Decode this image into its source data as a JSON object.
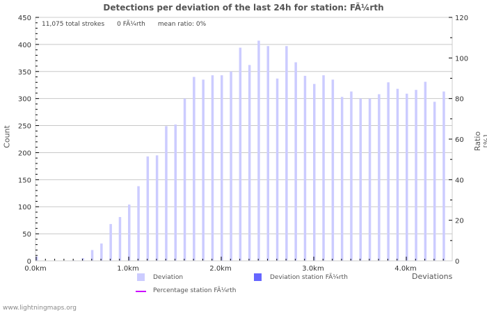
{
  "title": "Detections per deviation of the last 24h for station: FÃ¼rth",
  "stats": {
    "total_strokes": "11,075 total strokes",
    "station_count": "0 FÃ¼rth",
    "mean_ratio": "mean ratio: 0%"
  },
  "footer": "www.lightningmaps.org",
  "colors": {
    "deviation": "#ccccff",
    "deviation_station": "#6666ff",
    "percentage_line": "#cc00ff",
    "grid": "#c8c8c8"
  },
  "chart_data": {
    "type": "bar",
    "title": "Detections per deviation of the last 24h for station: FÃ¼rth",
    "xlabel": "Deviations",
    "ylabel": "Count",
    "ylabel_right": "Ratio [%]",
    "ylim": [
      0,
      450
    ],
    "ylim_right": [
      0,
      120
    ],
    "yticks": [
      0,
      50,
      100,
      150,
      200,
      250,
      300,
      350,
      400,
      450
    ],
    "yticks_right": [
      0,
      20,
      40,
      60,
      80,
      100,
      120
    ],
    "xtick_labels": [
      "0.0km",
      "1.0km",
      "2.0km",
      "3.0km",
      "4.0km"
    ],
    "grid": true,
    "legend": [
      "Deviation",
      "Deviation station FÃ¼rth",
      "Percentage station FÃ¼rth"
    ],
    "legend_position": "bottom",
    "categories": [
      "0.0",
      "0.1",
      "0.2",
      "0.3",
      "0.4",
      "0.5",
      "0.6",
      "0.7",
      "0.8",
      "0.9",
      "1.0",
      "1.1",
      "1.2",
      "1.3",
      "1.4",
      "1.5",
      "1.6",
      "1.7",
      "1.8",
      "1.9",
      "2.0",
      "2.1",
      "2.2",
      "2.3",
      "2.4",
      "2.5",
      "2.6",
      "2.7",
      "2.8",
      "2.9",
      "3.0",
      "3.1",
      "3.2",
      "3.3",
      "3.4",
      "3.5",
      "3.6",
      "3.7",
      "3.8",
      "3.9",
      "4.0",
      "4.1",
      "4.2",
      "4.3",
      "4.4"
    ],
    "series": [
      {
        "name": "Deviation",
        "values": [
          8,
          0,
          0,
          0,
          1,
          5,
          20,
          32,
          68,
          81,
          104,
          138,
          193,
          195,
          249,
          252,
          300,
          340,
          335,
          343,
          343,
          350,
          394,
          362,
          407,
          397,
          337,
          397,
          367,
          342,
          327,
          343,
          335,
          303,
          313,
          300,
          300,
          308,
          330,
          318,
          309,
          316,
          331,
          294,
          313
        ]
      },
      {
        "name": "Deviation station FÃ¼rth",
        "values": [
          0,
          0,
          0,
          0,
          0,
          0,
          0,
          0,
          0,
          0,
          0,
          0,
          0,
          0,
          0,
          0,
          0,
          0,
          0,
          0,
          0,
          0,
          0,
          0,
          0,
          0,
          0,
          0,
          0,
          0,
          0,
          0,
          0,
          0,
          0,
          0,
          0,
          0,
          0,
          0,
          0,
          0,
          0,
          0,
          0
        ]
      },
      {
        "name": "Percentage station FÃ¼rth",
        "values": [
          0,
          0,
          0,
          0,
          0,
          0,
          0,
          0,
          0,
          0,
          0,
          0,
          0,
          0,
          0,
          0,
          0,
          0,
          0,
          0,
          0,
          0,
          0,
          0,
          0,
          0,
          0,
          0,
          0,
          0,
          0,
          0,
          0,
          0,
          0,
          0,
          0,
          0,
          0,
          0,
          0,
          0,
          0,
          0,
          0
        ]
      }
    ]
  }
}
